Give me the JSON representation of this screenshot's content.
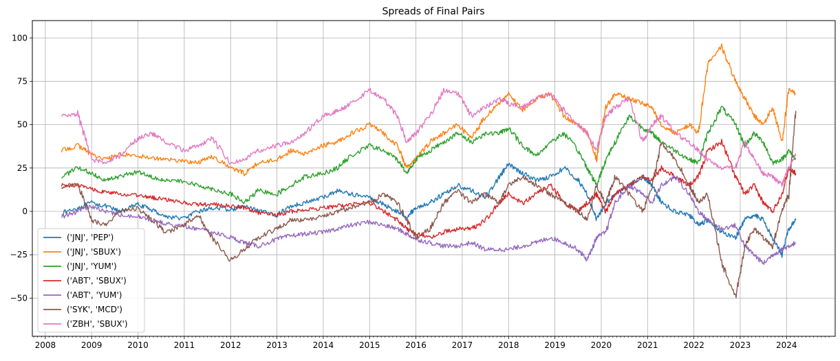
{
  "chart_data": {
    "type": "line",
    "title": "Spreads of Final Pairs",
    "xlabel": "",
    "ylabel": "",
    "xlim": [
      2007.72,
      2025.05
    ],
    "ylim": [
      -72,
      110
    ],
    "x_ticks": [
      "2008",
      "2009",
      "2010",
      "2011",
      "2012",
      "2013",
      "2014",
      "2015",
      "2016",
      "2017",
      "2018",
      "2019",
      "2020",
      "2021",
      "2022",
      "2023",
      "2024"
    ],
    "y_ticks": [
      100,
      75,
      50,
      25,
      0,
      -25,
      -50
    ],
    "grid": true,
    "legend_position": "lower-left",
    "series": [
      {
        "name": "('JNJ', 'PEP')",
        "color": "#1f77b4",
        "x": [
          2008.35,
          2008.7,
          2009.0,
          2009.3,
          2009.6,
          2010.0,
          2010.3,
          2010.6,
          2011.0,
          2011.3,
          2011.6,
          2012.0,
          2012.3,
          2012.6,
          2013.0,
          2013.3,
          2013.6,
          2014.0,
          2014.3,
          2014.6,
          2015.0,
          2015.3,
          2015.6,
          2015.8,
          2016.0,
          2016.3,
          2016.6,
          2016.9,
          2017.2,
          2017.5,
          2017.8,
          2018.0,
          2018.3,
          2018.6,
          2018.9,
          2019.2,
          2019.5,
          2019.7,
          2019.9,
          2020.1,
          2020.3,
          2020.6,
          2020.9,
          2021.1,
          2021.3,
          2021.6,
          2021.9,
          2022.1,
          2022.3,
          2022.6,
          2022.9,
          2023.1,
          2023.3,
          2023.5,
          2023.7,
          2023.9,
          2024.05,
          2024.2
        ],
        "y": [
          -1,
          2,
          5,
          3,
          0,
          4,
          1,
          -3,
          -4,
          0,
          2,
          1,
          3,
          0,
          -2,
          3,
          5,
          8,
          12,
          10,
          8,
          4,
          0,
          -3,
          2,
          5,
          10,
          15,
          12,
          8,
          20,
          27,
          22,
          18,
          20,
          25,
          18,
          10,
          -5,
          5,
          10,
          15,
          20,
          15,
          5,
          0,
          -2,
          -8,
          -5,
          -12,
          -15,
          -5,
          -2,
          -5,
          -15,
          -25,
          -10,
          -5
        ]
      },
      {
        "name": "('JNJ', 'SBUX')",
        "color": "#ff7f0e",
        "x": [
          2008.35,
          2008.7,
          2009.0,
          2009.3,
          2009.6,
          2010.0,
          2010.3,
          2010.6,
          2011.0,
          2011.3,
          2011.6,
          2012.0,
          2012.3,
          2012.6,
          2013.0,
          2013.3,
          2013.6,
          2014.0,
          2014.3,
          2014.6,
          2015.0,
          2015.3,
          2015.6,
          2015.8,
          2016.0,
          2016.3,
          2016.6,
          2016.9,
          2017.2,
          2017.5,
          2017.8,
          2018.0,
          2018.3,
          2018.6,
          2018.9,
          2019.2,
          2019.5,
          2019.7,
          2019.9,
          2020.1,
          2020.3,
          2020.6,
          2020.9,
          2021.1,
          2021.3,
          2021.6,
          2021.9,
          2022.1,
          2022.3,
          2022.6,
          2022.9,
          2023.1,
          2023.3,
          2023.5,
          2023.7,
          2023.9,
          2024.05,
          2024.2
        ],
        "y": [
          35,
          38,
          33,
          30,
          33,
          32,
          31,
          30,
          29,
          28,
          32,
          25,
          22,
          28,
          30,
          35,
          33,
          38,
          40,
          45,
          50,
          45,
          38,
          25,
          30,
          40,
          45,
          50,
          42,
          55,
          62,
          68,
          58,
          65,
          68,
          55,
          50,
          45,
          30,
          60,
          68,
          65,
          62,
          60,
          50,
          45,
          50,
          45,
          85,
          95,
          75,
          65,
          55,
          50,
          60,
          40,
          70,
          68
        ]
      },
      {
        "name": "('JNJ', 'YUM')",
        "color": "#2ca02c",
        "x": [
          2008.35,
          2008.7,
          2009.0,
          2009.3,
          2009.6,
          2010.0,
          2010.3,
          2010.6,
          2011.0,
          2011.3,
          2011.6,
          2012.0,
          2012.3,
          2012.6,
          2013.0,
          2013.3,
          2013.6,
          2014.0,
          2014.3,
          2014.6,
          2015.0,
          2015.3,
          2015.6,
          2015.8,
          2016.0,
          2016.3,
          2016.6,
          2016.9,
          2017.2,
          2017.5,
          2017.8,
          2018.0,
          2018.3,
          2018.6,
          2018.9,
          2019.2,
          2019.5,
          2019.7,
          2019.9,
          2020.1,
          2020.3,
          2020.6,
          2020.9,
          2021.1,
          2021.3,
          2021.6,
          2021.9,
          2022.1,
          2022.3,
          2022.6,
          2022.9,
          2023.1,
          2023.3,
          2023.5,
          2023.7,
          2023.9,
          2024.05,
          2024.2
        ],
        "y": [
          20,
          25,
          22,
          18,
          20,
          23,
          20,
          18,
          17,
          15,
          13,
          10,
          5,
          12,
          10,
          15,
          20,
          22,
          25,
          32,
          38,
          35,
          30,
          22,
          30,
          35,
          40,
          45,
          40,
          45,
          45,
          48,
          38,
          32,
          40,
          45,
          35,
          25,
          15,
          30,
          40,
          55,
          48,
          45,
          40,
          35,
          30,
          28,
          45,
          60,
          50,
          38,
          45,
          40,
          28,
          30,
          35,
          30
        ]
      },
      {
        "name": "('ABT', 'SBUX')",
        "color": "#d62728",
        "x": [
          2008.35,
          2008.7,
          2009.0,
          2009.3,
          2009.6,
          2010.0,
          2010.3,
          2010.6,
          2011.0,
          2011.3,
          2011.6,
          2012.0,
          2012.3,
          2012.6,
          2013.0,
          2013.3,
          2013.6,
          2014.0,
          2014.3,
          2014.6,
          2015.0,
          2015.3,
          2015.6,
          2015.8,
          2016.0,
          2016.3,
          2016.6,
          2016.9,
          2017.2,
          2017.5,
          2017.8,
          2018.0,
          2018.3,
          2018.6,
          2018.9,
          2019.2,
          2019.5,
          2019.7,
          2019.9,
          2020.1,
          2020.3,
          2020.6,
          2020.9,
          2021.1,
          2021.3,
          2021.6,
          2021.9,
          2022.1,
          2022.3,
          2022.6,
          2022.9,
          2023.1,
          2023.3,
          2023.5,
          2023.7,
          2023.9,
          2024.05,
          2024.2
        ],
        "y": [
          15,
          15,
          13,
          11,
          10,
          9,
          8,
          7,
          5,
          4,
          4,
          3,
          2,
          -1,
          -2,
          0,
          1,
          2,
          3,
          4,
          5,
          0,
          -5,
          -10,
          -13,
          -15,
          -12,
          -10,
          -10,
          -5,
          5,
          10,
          5,
          10,
          15,
          5,
          0,
          5,
          10,
          0,
          10,
          15,
          20,
          18,
          25,
          20,
          15,
          20,
          35,
          40,
          20,
          10,
          15,
          5,
          0,
          10,
          25,
          22
        ]
      },
      {
        "name": "('ABT', 'YUM')",
        "color": "#9467bd",
        "x": [
          2008.35,
          2008.7,
          2009.0,
          2009.3,
          2009.6,
          2010.0,
          2010.3,
          2010.6,
          2011.0,
          2011.3,
          2011.6,
          2012.0,
          2012.3,
          2012.6,
          2013.0,
          2013.3,
          2013.6,
          2014.0,
          2014.3,
          2014.6,
          2015.0,
          2015.3,
          2015.6,
          2015.8,
          2016.0,
          2016.3,
          2016.6,
          2016.9,
          2017.2,
          2017.5,
          2017.8,
          2018.0,
          2018.3,
          2018.6,
          2018.9,
          2019.2,
          2019.5,
          2019.7,
          2019.9,
          2020.1,
          2020.3,
          2020.6,
          2020.9,
          2021.1,
          2021.3,
          2021.6,
          2021.9,
          2022.1,
          2022.3,
          2022.6,
          2022.9,
          2023.1,
          2023.3,
          2023.5,
          2023.7,
          2023.9,
          2024.05,
          2024.2
        ],
        "y": [
          -3,
          0,
          3,
          0,
          -2,
          -3,
          -5,
          -7,
          -9,
          -10,
          -12,
          -15,
          -18,
          -20,
          -16,
          -14,
          -13,
          -12,
          -10,
          -8,
          -6,
          -8,
          -10,
          -13,
          -16,
          -18,
          -20,
          -20,
          -18,
          -22,
          -22,
          -22,
          -20,
          -18,
          -15,
          -18,
          -22,
          -28,
          -15,
          -12,
          5,
          15,
          10,
          5,
          15,
          20,
          10,
          0,
          -5,
          -10,
          -8,
          -20,
          -25,
          -30,
          -25,
          -22,
          -20,
          -18
        ]
      },
      {
        "name": "('SYK', 'MCD')",
        "color": "#8c564b",
        "x": [
          2008.35,
          2008.7,
          2009.0,
          2009.3,
          2009.6,
          2010.0,
          2010.3,
          2010.6,
          2011.0,
          2011.3,
          2011.6,
          2012.0,
          2012.3,
          2012.6,
          2013.0,
          2013.3,
          2013.6,
          2014.0,
          2014.3,
          2014.6,
          2015.0,
          2015.3,
          2015.6,
          2015.8,
          2016.0,
          2016.3,
          2016.6,
          2016.9,
          2017.2,
          2017.5,
          2017.8,
          2018.0,
          2018.3,
          2018.6,
          2018.9,
          2019.2,
          2019.5,
          2019.7,
          2019.9,
          2020.1,
          2020.3,
          2020.6,
          2020.9,
          2021.1,
          2021.3,
          2021.6,
          2021.9,
          2022.1,
          2022.3,
          2022.6,
          2022.9,
          2023.1,
          2023.3,
          2023.5,
          2023.7,
          2023.9,
          2024.05,
          2024.2
        ],
        "y": [
          14,
          16,
          -5,
          -8,
          0,
          2,
          -5,
          -12,
          -8,
          -2,
          -15,
          -28,
          -22,
          -15,
          -10,
          -5,
          -5,
          -3,
          0,
          2,
          5,
          10,
          5,
          -5,
          -15,
          -10,
          5,
          12,
          5,
          10,
          5,
          15,
          20,
          15,
          10,
          5,
          0,
          -5,
          15,
          5,
          20,
          10,
          0,
          15,
          40,
          30,
          15,
          5,
          10,
          -30,
          -50,
          -20,
          -10,
          -15,
          -20,
          0,
          10,
          58
        ]
      },
      {
        "name": "('ZBH', 'SBUX')",
        "color": "#e377c2",
        "x": [
          2008.35,
          2008.7,
          2009.0,
          2009.3,
          2009.6,
          2010.0,
          2010.3,
          2010.6,
          2011.0,
          2011.3,
          2011.6,
          2012.0,
          2012.3,
          2012.6,
          2013.0,
          2013.3,
          2013.6,
          2014.0,
          2014.3,
          2014.6,
          2015.0,
          2015.3,
          2015.6,
          2015.8,
          2016.0,
          2016.3,
          2016.6,
          2016.9,
          2017.2,
          2017.5,
          2017.8,
          2018.0,
          2018.3,
          2018.6,
          2018.9,
          2019.2,
          2019.5,
          2019.7,
          2019.9,
          2020.1,
          2020.3,
          2020.6,
          2020.9,
          2021.1,
          2021.3,
          2021.6,
          2021.9,
          2022.1,
          2022.3,
          2022.6,
          2022.9,
          2023.1,
          2023.3,
          2023.5,
          2023.7,
          2023.9,
          2024.05,
          2024.2
        ],
        "y": [
          55,
          56,
          30,
          28,
          32,
          42,
          45,
          40,
          35,
          38,
          42,
          28,
          30,
          35,
          38,
          40,
          45,
          55,
          58,
          62,
          70,
          65,
          55,
          40,
          45,
          55,
          70,
          68,
          55,
          60,
          65,
          62,
          60,
          65,
          68,
          58,
          50,
          45,
          35,
          55,
          60,
          65,
          40,
          50,
          55,
          45,
          40,
          35,
          30,
          25,
          25,
          40,
          30,
          22,
          20,
          15,
          25,
          32
        ]
      }
    ]
  }
}
